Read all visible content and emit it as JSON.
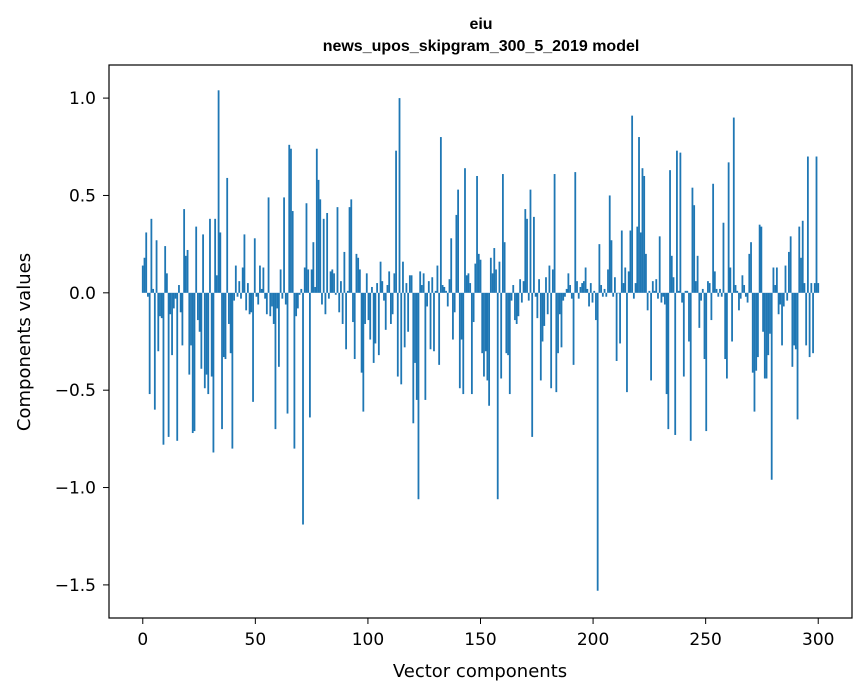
{
  "chart_data": {
    "type": "bar",
    "title": "eiu",
    "subtitle": "news_upos_skipgram_300_5_2019 model",
    "xlabel": "Vector components",
    "ylabel": "Components values",
    "xlim": [
      -15,
      315
    ],
    "ylim": [
      -1.67,
      1.17
    ],
    "xticks": [
      0,
      50,
      100,
      150,
      200,
      250,
      300
    ],
    "xtick_labels": [
      "0",
      "50",
      "100",
      "150",
      "200",
      "250",
      "300"
    ],
    "yticks": [
      1.0,
      0.5,
      0.0,
      -0.5,
      -1.0,
      -1.5
    ],
    "ytick_labels": [
      "1.0",
      "0.5",
      "0.0",
      "−0.5",
      "−1.0",
      "−1.5"
    ],
    "bar_color": "#1f77b4",
    "values": [
      0.14,
      0.18,
      0.31,
      -0.02,
      -0.52,
      0.38,
      0.02,
      -0.6,
      0.27,
      -0.3,
      -0.12,
      -0.13,
      -0.78,
      0.24,
      0.1,
      -0.74,
      -0.11,
      -0.32,
      -0.08,
      -0.03,
      -0.76,
      0.04,
      -0.1,
      -0.27,
      0.43,
      0.19,
      0.22,
      -0.42,
      -0.27,
      -0.72,
      -0.71,
      0.34,
      -0.14,
      -0.2,
      -0.39,
      0.3,
      -0.49,
      -0.42,
      -0.52,
      0.38,
      -0.43,
      -0.82,
      0.38,
      0.09,
      1.04,
      0.31,
      -0.7,
      -0.33,
      -0.34,
      0.59,
      -0.16,
      -0.31,
      -0.8,
      -0.04,
      0.14,
      -0.02,
      0.06,
      -0.03,
      0.13,
      0.3,
      -0.09,
      0.05,
      -0.11,
      -0.1,
      -0.56,
      0.28,
      -0.02,
      -0.06,
      0.14,
      0.02,
      0.13,
      -0.03,
      -0.11,
      0.49,
      -0.12,
      -0.07,
      -0.16,
      -0.7,
      -0.08,
      -0.38,
      0.12,
      -0.03,
      0.49,
      -0.06,
      -0.62,
      0.76,
      0.74,
      0.42,
      -0.8,
      -0.12,
      -0.08,
      -0.01,
      0.02,
      -1.19,
      0.13,
      0.46,
      0.12,
      -0.64,
      0.12,
      0.26,
      0.03,
      0.74,
      0.58,
      0.48,
      -0.06,
      0.38,
      -0.11,
      0.41,
      -0.03,
      0.11,
      0.12,
      0.1,
      -0.01,
      0.44,
      -0.1,
      0.06,
      -0.16,
      0.21,
      -0.29,
      0.01,
      0.44,
      0.48,
      -0.15,
      -0.34,
      0.2,
      0.18,
      0.12,
      -0.41,
      -0.61,
      -0.16,
      0.1,
      -0.14,
      -0.24,
      0.03,
      -0.36,
      -0.26,
      0.05,
      -0.32,
      0.16,
      0.06,
      -0.04,
      -0.19,
      0.04,
      0.11,
      -0.16,
      -0.11,
      0.1,
      0.73,
      -0.43,
      1.0,
      -0.47,
      0.16,
      -0.28,
      0.05,
      -0.2,
      0.09,
      0.09,
      -0.67,
      -0.36,
      -0.55,
      -1.06,
      0.11,
      0.04,
      0.1,
      -0.55,
      -0.07,
      0.06,
      -0.29,
      0.08,
      -0.3,
      0.01,
      0.14,
      -0.37,
      0.8,
      0.04,
      0.03,
      0.01,
      -0.07,
      0.07,
      0.28,
      -0.24,
      -0.1,
      0.4,
      0.53,
      -0.49,
      -0.24,
      -0.52,
      0.64,
      0.09,
      0.1,
      0.05,
      -0.52,
      -0.15,
      0.15,
      0.6,
      0.2,
      0.17,
      -0.31,
      -0.43,
      -0.3,
      -0.45,
      -0.58,
      0.18,
      0.1,
      0.23,
      0.12,
      -1.06,
      0.16,
      -0.44,
      0.61,
      0.26,
      -0.31,
      -0.32,
      -0.52,
      -0.04,
      0.04,
      -0.14,
      -0.16,
      -0.12,
      0.07,
      -0.05,
      0.06,
      0.43,
      0.38,
      -0.04,
      0.53,
      -0.74,
      0.39,
      -0.02,
      -0.13,
      0.07,
      -0.45,
      -0.25,
      -0.17,
      0.08,
      -0.11,
      0.14,
      -0.49,
      0.12,
      0.61,
      -0.51,
      -0.31,
      -0.11,
      -0.28,
      -0.04,
      -0.02,
      0.02,
      0.1,
      0.04,
      -0.03,
      -0.37,
      0.62,
      0.06,
      -0.03,
      0.03,
      0.05,
      0.06,
      0.13,
      0.02,
      -0.07,
      0.05,
      -0.05,
      0.01,
      -0.14,
      -1.53,
      0.25,
      0.04,
      -0.02,
      0.02,
      -0.02,
      0.12,
      0.5,
      0.27,
      -0.02,
      0.08,
      -0.35,
      0.0,
      -0.26,
      0.32,
      0.05,
      0.13,
      -0.51,
      0.11,
      0.32,
      0.91,
      -0.03,
      0.05,
      0.34,
      0.8,
      0.31,
      0.64,
      0.6,
      0.2,
      -0.09,
      0.01,
      -0.45,
      0.06,
      0.01,
      0.07,
      -0.03,
      0.29,
      -0.05,
      -0.02,
      -0.06,
      -0.52,
      -0.7,
      0.63,
      0.19,
      0.08,
      -0.73,
      0.73,
      0.01,
      0.72,
      -0.05,
      -0.43,
      0.01,
      0.01,
      -0.25,
      -0.76,
      0.54,
      0.45,
      0.06,
      0.19,
      -0.18,
      -0.04,
      0.02,
      -0.34,
      -0.71,
      0.06,
      0.05,
      -0.14,
      0.56,
      0.11,
      0.02,
      -0.02,
      0.02,
      -0.02,
      0.36,
      -0.34,
      -0.44,
      0.67,
      0.13,
      -0.25,
      0.9,
      0.04,
      0.01,
      -0.09,
      -0.03,
      0.09,
      0.04,
      -0.02,
      -0.05,
      0.2,
      0.26,
      -0.41,
      -0.61,
      -0.4,
      -0.33,
      0.35,
      0.34,
      -0.2,
      -0.44,
      -0.44,
      -0.32,
      -0.21,
      -0.96,
      0.13,
      0.04,
      0.13,
      -0.11,
      -0.06,
      -0.27,
      -0.07,
      0.14,
      -0.04,
      0.21,
      0.29,
      -0.38,
      -0.27,
      -0.29,
      -0.65,
      0.34,
      0.18,
      0.37,
      0.05,
      -0.27,
      0.7,
      -0.33,
      0.05,
      -0.31,
      0.05,
      0.7,
      0.05
    ]
  }
}
